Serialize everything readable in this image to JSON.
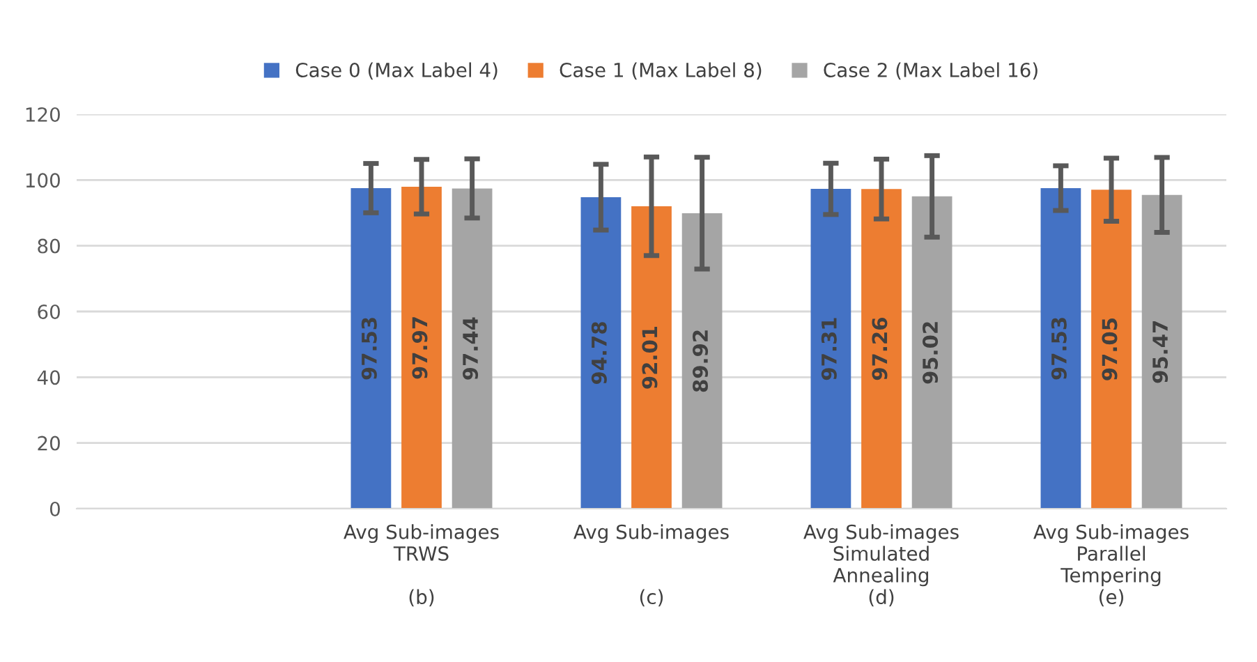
{
  "chart_data": {
    "type": "bar",
    "categories": [
      null,
      "Avg Sub-images\nTRWS\n\n(b)",
      "Avg Sub-images\n\n\n(c)",
      "Avg Sub-images\nSimulated\nAnnealing\n(d)",
      "Avg Sub-images\nParallel\nTempering\n(e)"
    ],
    "series": [
      {
        "name": "Case 0 (Max Label 4)",
        "color": "#4472c4",
        "values": [
          null,
          97.53,
          94.78,
          97.31,
          97.53
        ],
        "errors": [
          null,
          7.5,
          10.0,
          7.8,
          6.8
        ]
      },
      {
        "name": "Case 1 (Max Label 8)",
        "color": "#ed7d31",
        "values": [
          null,
          97.97,
          92.01,
          97.26,
          97.05
        ],
        "errors": [
          null,
          8.3,
          15.0,
          9.1,
          9.6
        ]
      },
      {
        "name": "Case 2 (Max Label 16)",
        "color": "#a5a5a5",
        "values": [
          null,
          97.44,
          89.92,
          95.02,
          95.47
        ],
        "errors": [
          null,
          9.0,
          17.0,
          12.4,
          11.4
        ]
      }
    ],
    "ylim": [
      0,
      120
    ],
    "yticks": [
      0,
      20,
      40,
      60,
      80,
      100,
      120
    ],
    "grid": "y",
    "legend": "top",
    "data_labels": true
  }
}
